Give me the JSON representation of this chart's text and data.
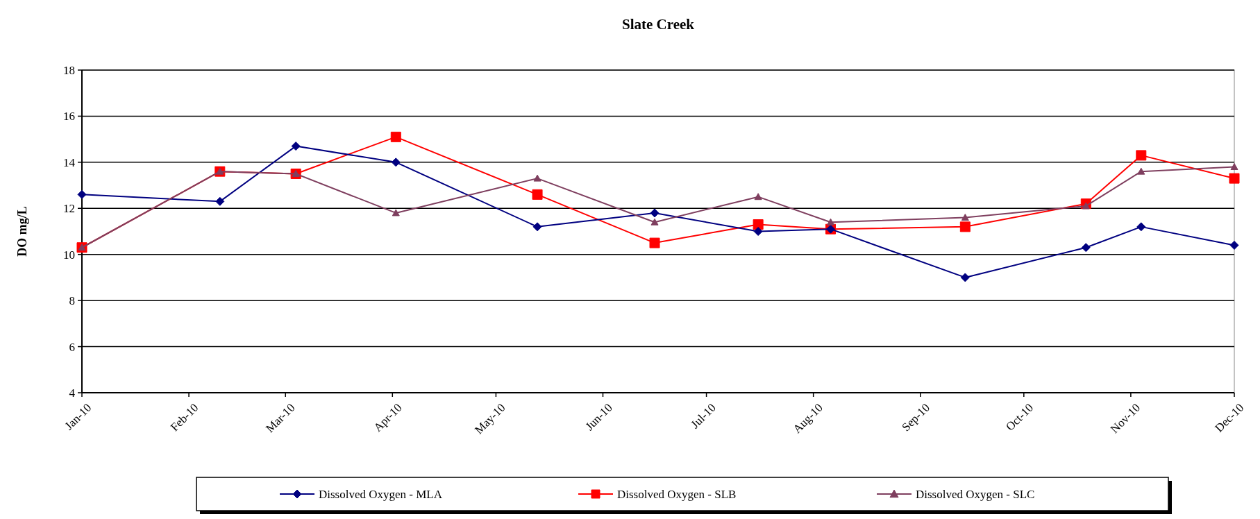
{
  "chart_data": {
    "type": "line",
    "title": "Slate Creek",
    "ylabel": "DO mg/L",
    "x": [
      "2010-01-01",
      "2010-02-10",
      "2010-03-04",
      "2010-04-02",
      "2010-05-13",
      "2010-06-16",
      "2010-07-16",
      "2010-08-06",
      "2010-09-14",
      "2010-10-19",
      "2010-11-04",
      "2010-12-01"
    ],
    "series": [
      {
        "name": "Dissolved Oxygen - MLA",
        "color": "#000080",
        "marker": "diamond",
        "values": [
          12.6,
          12.3,
          14.7,
          14.0,
          11.2,
          11.8,
          11.0,
          11.1,
          9.0,
          10.3,
          11.2,
          10.4
        ]
      },
      {
        "name": "Dissolved Oxygen - SLB",
        "color": "#ff0000",
        "marker": "square",
        "values": [
          10.3,
          13.6,
          13.5,
          15.1,
          12.6,
          10.5,
          11.3,
          11.1,
          11.2,
          12.2,
          14.3,
          13.3
        ]
      },
      {
        "name": "Dissolved Oxygen - SLC",
        "color": "#7f3f5f",
        "marker": "triangle",
        "values": [
          10.3,
          13.6,
          13.5,
          11.8,
          13.3,
          11.4,
          12.5,
          11.4,
          11.6,
          12.1,
          13.6,
          13.8
        ]
      }
    ],
    "xlim": [
      "2010-01-01",
      "2010-12-01"
    ],
    "xticks": [
      {
        "value": "2010-01-01",
        "label": "Jan-10"
      },
      {
        "value": "2010-02-01",
        "label": "Feb-10"
      },
      {
        "value": "2010-03-01",
        "label": "Mar-10"
      },
      {
        "value": "2010-04-01",
        "label": "Apr-10"
      },
      {
        "value": "2010-05-01",
        "label": "May-10"
      },
      {
        "value": "2010-06-01",
        "label": "Jun-10"
      },
      {
        "value": "2010-07-01",
        "label": "Jul-10"
      },
      {
        "value": "2010-08-01",
        "label": "Aug-10"
      },
      {
        "value": "2010-09-01",
        "label": "Sep-10"
      },
      {
        "value": "2010-10-01",
        "label": "Oct-10"
      },
      {
        "value": "2010-11-01",
        "label": "Nov-10"
      },
      {
        "value": "2010-12-01",
        "label": "Dec-10"
      }
    ],
    "ylim": [
      4,
      18
    ],
    "yticks": [
      4,
      6,
      8,
      10,
      12,
      14,
      16,
      18
    ],
    "grid": "y",
    "legend": "bottom",
    "line_style": "solid"
  }
}
